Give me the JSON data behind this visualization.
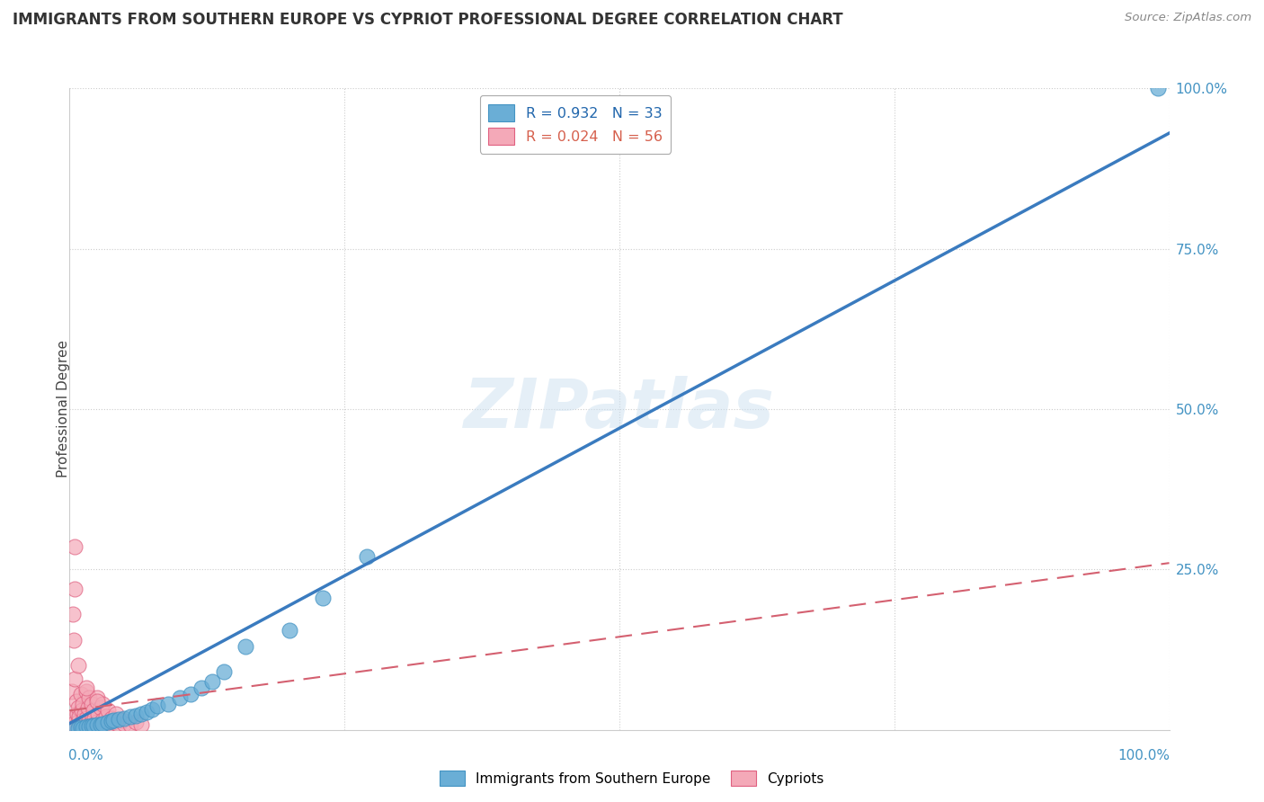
{
  "title": "IMMIGRANTS FROM SOUTHERN EUROPE VS CYPRIOT PROFESSIONAL DEGREE CORRELATION CHART",
  "source": "Source: ZipAtlas.com",
  "ylabel": "Professional Degree",
  "legend1_label": "R = 0.932   N = 33",
  "legend2_label": "R = 0.024   N = 56",
  "blue_color": "#6aaed6",
  "blue_edge": "#4393c3",
  "pink_color": "#f4a9b8",
  "pink_edge": "#e06080",
  "blue_line_color": "#3a7bbf",
  "pink_line_color": "#d46070",
  "watermark": "ZIPatlas",
  "blue_line_x": [
    0.0,
    1.0
  ],
  "blue_line_y": [
    0.01,
    0.93
  ],
  "pink_line_x": [
    0.0,
    1.0
  ],
  "pink_line_y": [
    0.03,
    0.26
  ],
  "blue_scatter_x": [
    0.005,
    0.008,
    0.01,
    0.012,
    0.015,
    0.018,
    0.02,
    0.022,
    0.025,
    0.028,
    0.03,
    0.035,
    0.038,
    0.04,
    0.045,
    0.05,
    0.055,
    0.06,
    0.065,
    0.07,
    0.075,
    0.08,
    0.09,
    0.1,
    0.11,
    0.12,
    0.13,
    0.14,
    0.16,
    0.2,
    0.23,
    0.27,
    0.99
  ],
  "blue_scatter_y": [
    0.002,
    0.003,
    0.004,
    0.003,
    0.005,
    0.005,
    0.006,
    0.007,
    0.008,
    0.008,
    0.01,
    0.012,
    0.013,
    0.015,
    0.016,
    0.018,
    0.02,
    0.022,
    0.025,
    0.028,
    0.032,
    0.038,
    0.04,
    0.05,
    0.055,
    0.065,
    0.075,
    0.09,
    0.13,
    0.155,
    0.205,
    0.27,
    1.0
  ],
  "pink_scatter_x": [
    0.002,
    0.003,
    0.004,
    0.005,
    0.005,
    0.006,
    0.007,
    0.008,
    0.008,
    0.009,
    0.01,
    0.01,
    0.011,
    0.012,
    0.012,
    0.013,
    0.014,
    0.015,
    0.015,
    0.016,
    0.017,
    0.018,
    0.018,
    0.019,
    0.02,
    0.02,
    0.021,
    0.022,
    0.022,
    0.023,
    0.025,
    0.025,
    0.026,
    0.027,
    0.028,
    0.03,
    0.03,
    0.032,
    0.033,
    0.035,
    0.035,
    0.038,
    0.04,
    0.042,
    0.045,
    0.048,
    0.05,
    0.055,
    0.06,
    0.065,
    0.003,
    0.004,
    0.005,
    0.008,
    0.015,
    0.025
  ],
  "pink_scatter_y": [
    0.06,
    0.02,
    0.01,
    0.285,
    0.08,
    0.045,
    0.025,
    0.035,
    0.012,
    0.02,
    0.055,
    0.008,
    0.03,
    0.015,
    0.04,
    0.01,
    0.025,
    0.018,
    0.06,
    0.008,
    0.035,
    0.015,
    0.05,
    0.008,
    0.04,
    0.012,
    0.02,
    0.03,
    0.008,
    0.018,
    0.05,
    0.012,
    0.025,
    0.008,
    0.035,
    0.015,
    0.04,
    0.01,
    0.02,
    0.008,
    0.03,
    0.018,
    0.012,
    0.025,
    0.008,
    0.015,
    0.01,
    0.008,
    0.012,
    0.008,
    0.18,
    0.14,
    0.22,
    0.1,
    0.065,
    0.045
  ],
  "background_color": "#ffffff",
  "xlim": [
    0.0,
    1.0
  ],
  "ylim": [
    0.0,
    1.0
  ],
  "yticks_right": [
    0.25,
    0.5,
    0.75,
    1.0
  ],
  "ytick_labels_right": [
    "25.0%",
    "50.0%",
    "75.0%",
    "100.0%"
  ]
}
